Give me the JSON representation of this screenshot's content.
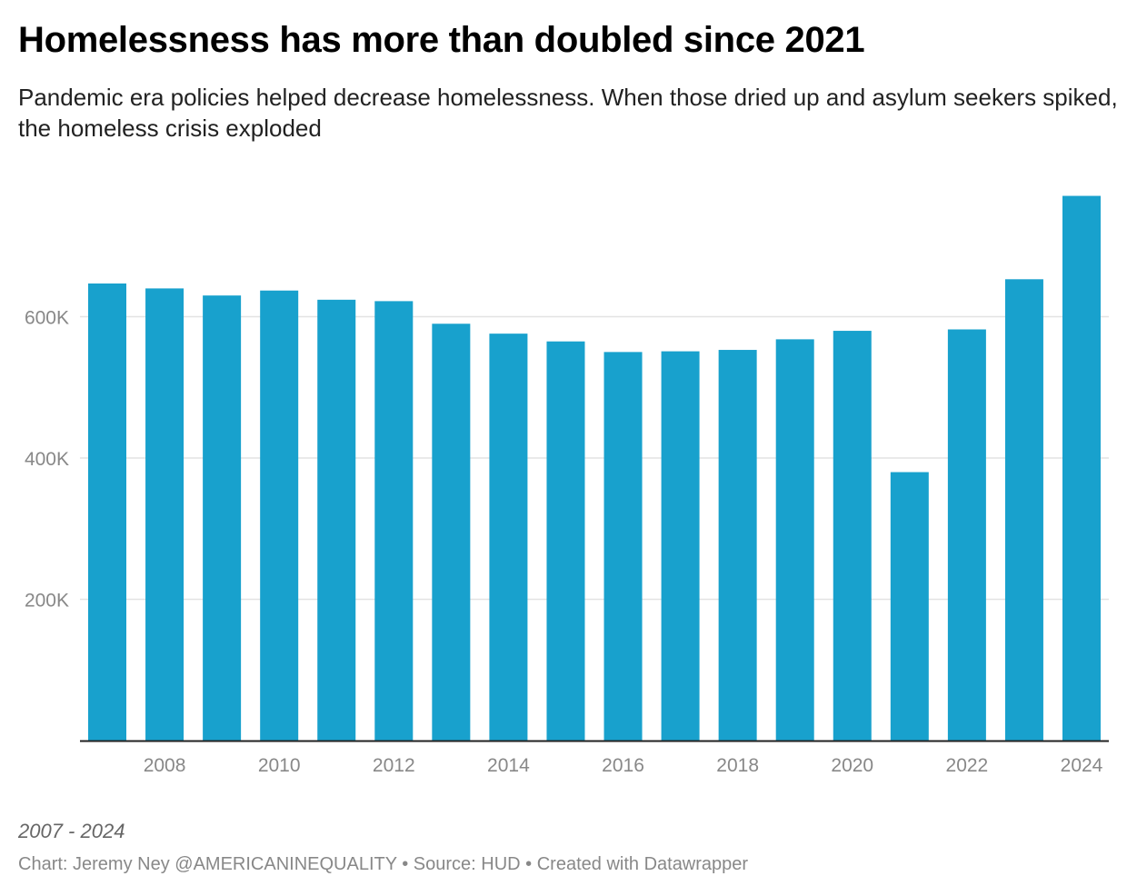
{
  "chart_data": {
    "type": "bar",
    "title": "Homelessness has more than doubled since 2021",
    "subtitle": "Pandemic era policies helped decrease homelessness. When those dried up and asylum seekers spiked, the homeless crisis exploded",
    "categories": [
      "2007",
      "2008",
      "2009",
      "2010",
      "2011",
      "2012",
      "2013",
      "2014",
      "2015",
      "2016",
      "2017",
      "2018",
      "2019",
      "2020",
      "2021",
      "2022",
      "2023",
      "2024"
    ],
    "values": [
      647000,
      640000,
      630000,
      637000,
      624000,
      622000,
      590000,
      576000,
      565000,
      550000,
      551000,
      553000,
      568000,
      580000,
      380000,
      582000,
      653000,
      771000
    ],
    "xticks": [
      "2008",
      "2010",
      "2012",
      "2014",
      "2016",
      "2018",
      "2020",
      "2022",
      "2024"
    ],
    "yticks": [
      {
        "value": 200000,
        "label": "200K"
      },
      {
        "value": 400000,
        "label": "400K"
      },
      {
        "value": 600000,
        "label": "600K"
      }
    ],
    "ylim": [
      0,
      780000
    ],
    "xlabel": "",
    "ylabel": "",
    "grid": true,
    "bar_color": "#18a1cd",
    "notes": "2007 - 2024",
    "byline": "Chart: Jeremy Ney @AMERICANINEQUALITY • Source: HUD • Created with Datawrapper"
  }
}
